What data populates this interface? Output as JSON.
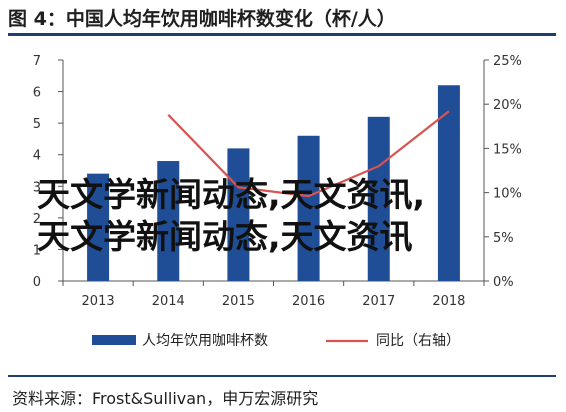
{
  "title": "图 4：中国人均年饮用咖啡杯数变化（杯/人）",
  "source": "资料来源：Frost&Sullivan，申万宏源研究",
  "watermark": {
    "line1": "天文学新闻动态,天文资讯,",
    "line2": "天文学新闻动态,天文资讯"
  },
  "colors": {
    "bar": "#1f4e96",
    "line": "#d9534f",
    "rule": "#1f3e73"
  },
  "chart_data": {
    "type": "bar",
    "categories": [
      "2013",
      "2014",
      "2015",
      "2016",
      "2017",
      "2018"
    ],
    "series": [
      {
        "name": "人均年饮用咖啡杯数",
        "type": "bar",
        "axis": "left",
        "values": [
          3.4,
          3.8,
          4.2,
          4.6,
          5.2,
          6.2
        ]
      },
      {
        "name": "同比（右轴）",
        "type": "line",
        "axis": "right",
        "values": [
          null,
          18.8,
          10.6,
          9.6,
          13.0,
          19.2
        ]
      }
    ],
    "y_left": {
      "min": 0,
      "max": 7,
      "ticks": [
        "0",
        "1",
        "2",
        "3",
        "4",
        "5",
        "6",
        "7"
      ]
    },
    "y_right": {
      "min": 0,
      "max": 25,
      "ticks": [
        "0%",
        "5%",
        "10%",
        "15%",
        "20%",
        "25%"
      ]
    },
    "legend_position": "bottom",
    "grid": false
  }
}
